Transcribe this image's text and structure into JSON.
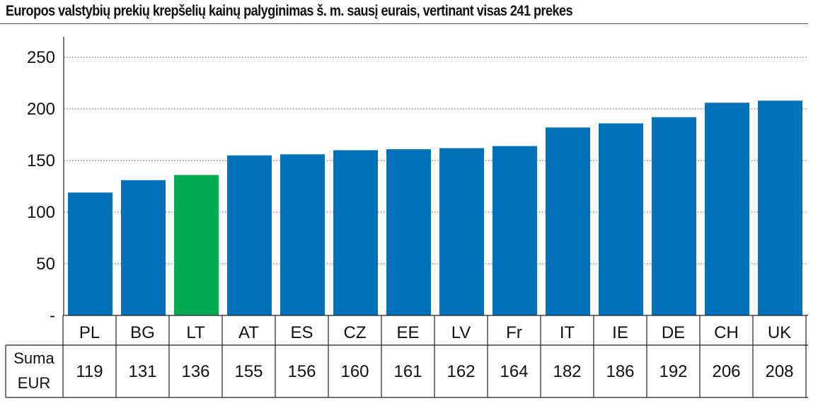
{
  "title": "Europos valstybių prekių krepšelių kainų palyginimas  š. m. sausį eurais, vertinant visas 241 prekes",
  "chart_data": {
    "type": "bar",
    "title": "Europos valstybių prekių krepšelių kainų palyginimas  š. m. sausį eurais, vertinant visas 241 prekes",
    "categories": [
      "PL",
      "BG",
      "LT",
      "AT",
      "ES",
      "CZ",
      "EE",
      "LV",
      "Fr",
      "IT",
      "IE",
      "DE",
      "CH",
      "UK"
    ],
    "values": [
      119,
      131,
      136,
      155,
      156,
      160,
      161,
      162,
      164,
      182,
      186,
      192,
      206,
      208
    ],
    "ylim": [
      0,
      250
    ],
    "yticks": [
      0,
      50,
      100,
      150,
      200,
      250
    ],
    "ytick_labels": [
      "-",
      "50",
      "100",
      "150",
      "200",
      "250"
    ],
    "grid": "dotted horizontal",
    "colors": {
      "default": "#0070b8",
      "highlight": "#00a94f",
      "highlight_category": "LT"
    },
    "table": {
      "row_label_line1": "Suma",
      "row_label_line2": "EUR"
    }
  }
}
